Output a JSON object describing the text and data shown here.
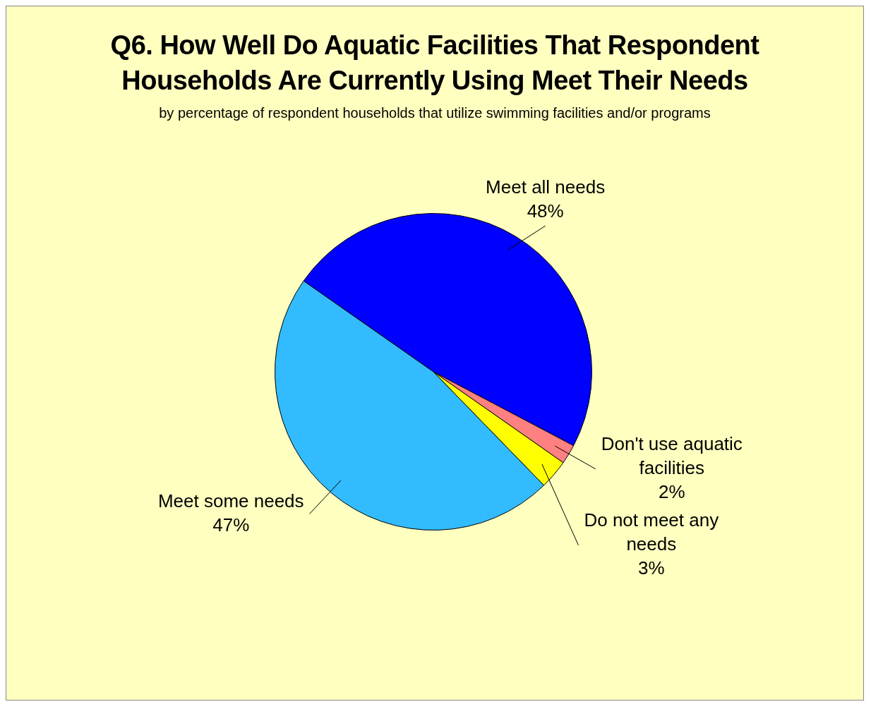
{
  "chart_data": {
    "type": "pie",
    "title": "Q6. How Well Do Aquatic Facilities That Respondent Households Are Currently Using Meet Their Needs",
    "subtitle": "by percentage of respondent households that utilize swimming facilities and/or programs",
    "categories": [
      "Meet all needs",
      "Don't use aquatic facilities",
      "Do not meet any needs",
      "Meet some needs"
    ],
    "values": [
      48,
      2,
      3,
      47
    ],
    "value_labels": [
      "48%",
      "2%",
      "3%",
      "47%"
    ],
    "colors": [
      "#0000ff",
      "#ff8080",
      "#ffff00",
      "#33bbff"
    ],
    "legend": false
  }
}
